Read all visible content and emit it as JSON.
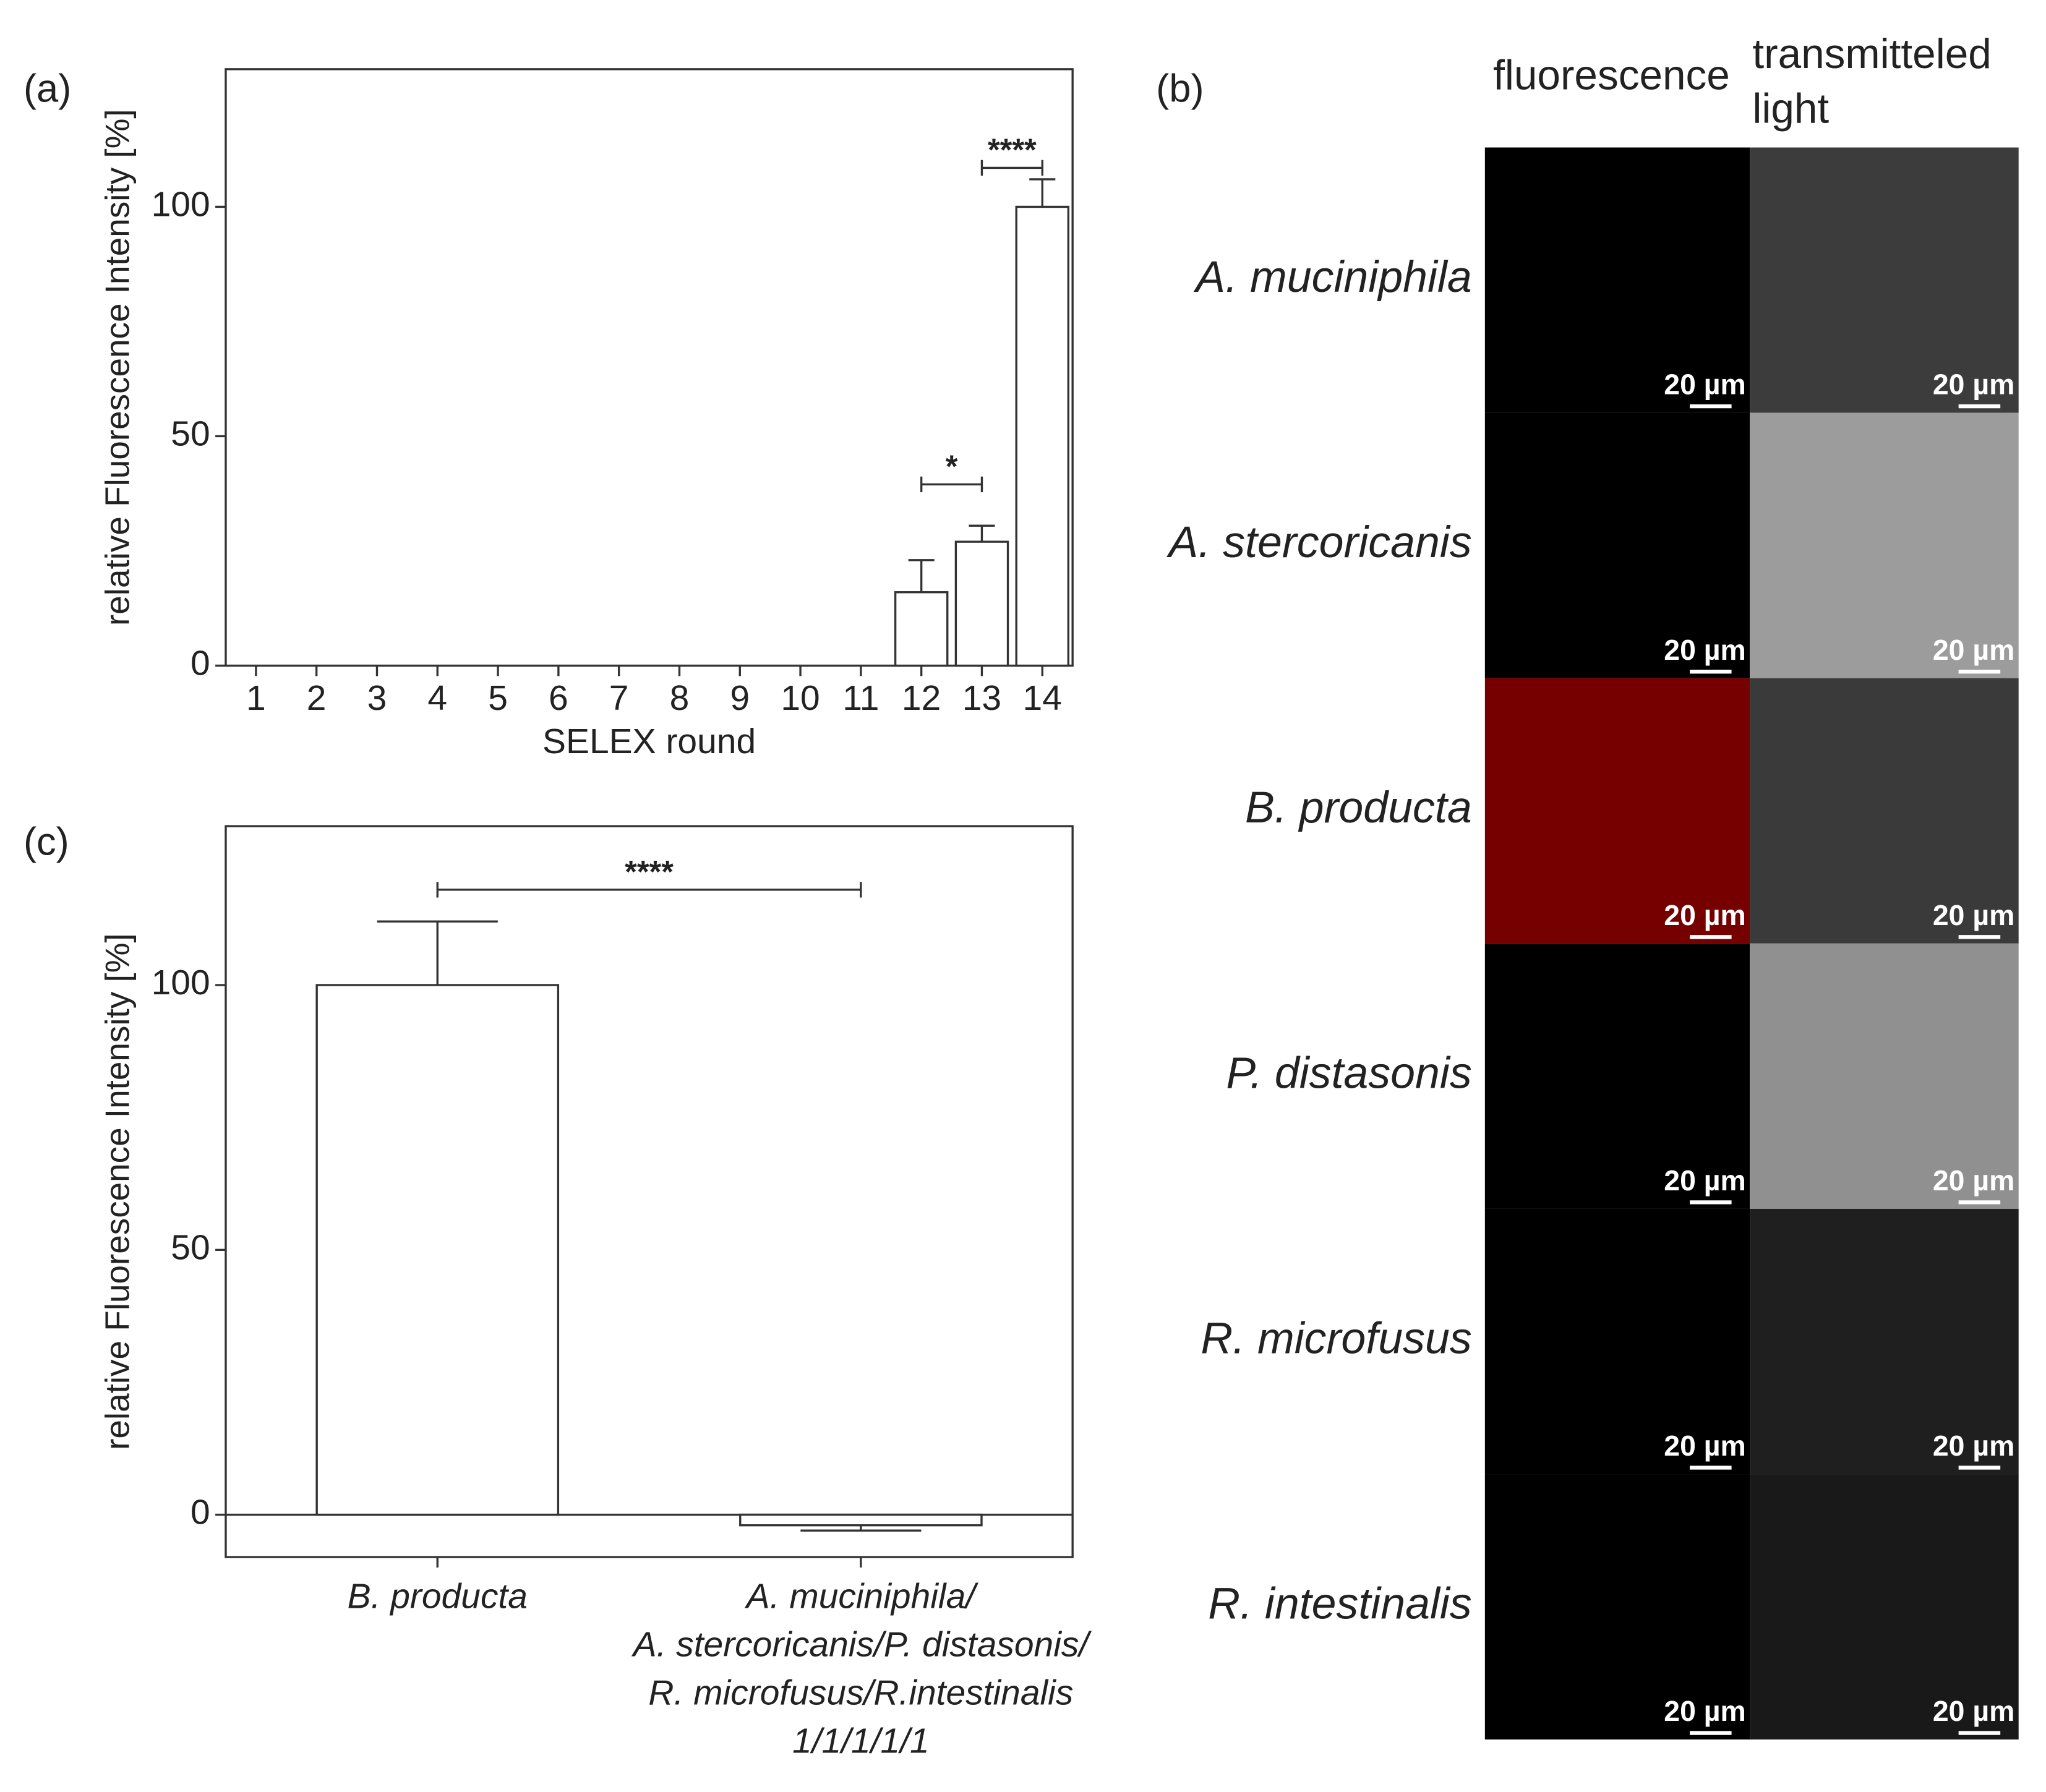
{
  "chart_data": [
    {
      "type": "bar",
      "panel": "(a)",
      "ylabel": "relative Fluorescence Intensity [%]",
      "xlabel": "SELEX round",
      "categories": [
        "1",
        "2",
        "3",
        "4",
        "5",
        "6",
        "7",
        "8",
        "9",
        "10",
        "11",
        "12",
        "13",
        "14"
      ],
      "values": [
        0,
        0,
        0,
        0,
        0,
        0,
        0,
        0,
        0,
        0,
        0,
        16,
        27,
        100
      ],
      "errors": [
        0,
        0,
        0,
        0,
        0,
        0,
        0,
        0,
        0,
        0,
        0,
        7,
        3.5,
        6
      ],
      "color": "#ffffff",
      "ylim": [
        0,
        130
      ],
      "yticks": [
        0,
        50,
        100
      ],
      "annotations": [
        {
          "text": "*",
          "between": [
            "12",
            "13"
          ],
          "y": 39.5
        },
        {
          "text": "****",
          "between": [
            "13",
            "14"
          ],
          "y": 108.5
        }
      ]
    },
    {
      "type": "bar",
      "panel": "(c)",
      "ylabel": "relative Fluorescence Intensity [%]",
      "categories": [
        "B. producta",
        "A. muciniphila/\nA. stercoricanis/P. distasonis/\nR. microfusus/R.intestinalis\n1/1/1/1/1"
      ],
      "values": [
        100,
        -2
      ],
      "errors": [
        12,
        1
      ],
      "color": "#ffffff",
      "ylim": [
        -8,
        130
      ],
      "yticks": [
        0,
        50,
        100
      ],
      "annotations": [
        {
          "text": "****",
          "between": [
            "B. producta",
            "A. muciniphila/\nA. stercoricanis/P. distasonis/\nR. microfusus/R.intestinalis\n1/1/1/1/1"
          ],
          "y": 118
        }
      ]
    }
  ],
  "microscopy": {
    "panel": "(b)",
    "columns": [
      "fluorescence",
      "transmitteled\nlight"
    ],
    "scale_bar": "20 µm",
    "rows": [
      {
        "species": "A. muciniphila",
        "colors": [
          "#000000",
          "#3c3c3c"
        ]
      },
      {
        "species": "A. stercoricanis",
        "colors": [
          "#000000",
          "#9c9c9c"
        ]
      },
      {
        "species": "B. producta",
        "colors": [
          "#760000",
          "#3a3a3a"
        ]
      },
      {
        "species": "P. distasonis",
        "colors": [
          "#000000",
          "#909090"
        ]
      },
      {
        "species": "R. microfusus",
        "colors": [
          "#000000",
          "#1f1f1f"
        ]
      },
      {
        "species": "R. intestinalis",
        "colors": [
          "#000000",
          "#191919"
        ]
      }
    ]
  }
}
